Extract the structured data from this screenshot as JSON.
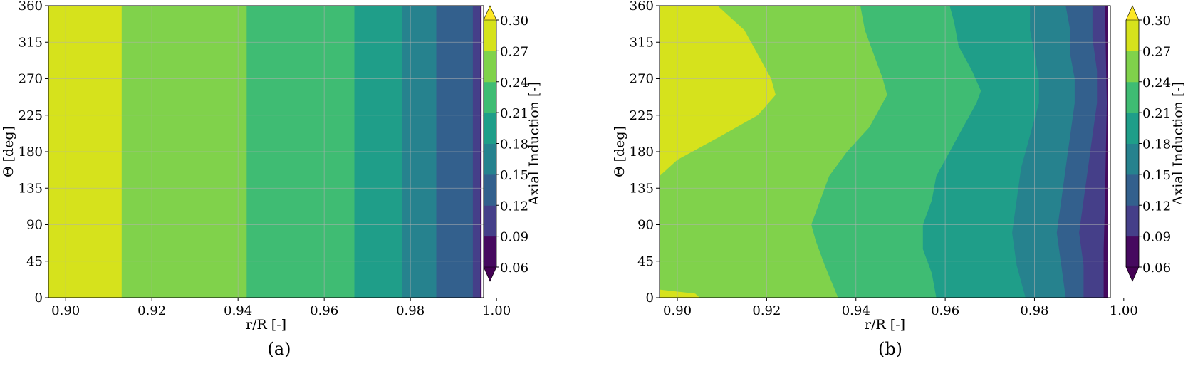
{
  "chart_data": [
    {
      "type": "heatmap",
      "panel_label": "(a)",
      "xlabel": "r/R [-]",
      "ylabel": "Θ [deg]",
      "xlim": [
        0.896,
        0.997
      ],
      "ylim": [
        0,
        360
      ],
      "x_ticks": [
        "0.90",
        "0.92",
        "0.94",
        "0.96",
        "0.98",
        "1.00"
      ],
      "y_ticks": [
        "0",
        "45",
        "90",
        "135",
        "180",
        "225",
        "270",
        "315",
        "360"
      ],
      "grid": true,
      "colorbar": {
        "label": "Axial Induction [-]",
        "levels": [
          0.06,
          0.09,
          0.12,
          0.15,
          0.18,
          0.21,
          0.24,
          0.27,
          0.3
        ],
        "tick_labels": [
          "0.06",
          "0.09",
          "0.12",
          "0.15",
          "0.18",
          "0.21",
          "0.24",
          "0.27",
          "0.30"
        ],
        "extend": "both",
        "colormap": "viridis"
      },
      "contour_boundaries": [
        {
          "level": 0.27,
          "theta": [
            0,
            360
          ],
          "r": [
            0.913,
            0.913
          ]
        },
        {
          "level": 0.24,
          "theta": [
            0,
            360
          ],
          "r": [
            0.942,
            0.942
          ]
        },
        {
          "level": 0.21,
          "theta": [
            0,
            360
          ],
          "r": [
            0.967,
            0.967
          ]
        },
        {
          "level": 0.18,
          "theta": [
            0,
            360
          ],
          "r": [
            0.978,
            0.978
          ]
        },
        {
          "level": 0.15,
          "theta": [
            0,
            360
          ],
          "r": [
            0.986,
            0.986
          ]
        },
        {
          "level": 0.12,
          "theta": [
            0,
            360
          ],
          "r": [
            0.9945,
            0.9945
          ]
        },
        {
          "level": 0.09,
          "theta": [
            0,
            360
          ],
          "r": [
            0.9962,
            0.9962
          ]
        }
      ]
    },
    {
      "type": "heatmap",
      "panel_label": "(b)",
      "xlabel": "r/R [-]",
      "ylabel": "Θ [deg]",
      "xlim": [
        0.896,
        0.997
      ],
      "ylim": [
        0,
        360
      ],
      "x_ticks": [
        "0.90",
        "0.92",
        "0.94",
        "0.96",
        "0.98",
        "1.00"
      ],
      "y_ticks": [
        "0",
        "45",
        "90",
        "135",
        "180",
        "225",
        "270",
        "315",
        "360"
      ],
      "grid": true,
      "colorbar": {
        "label": "Axial Induction [-]",
        "levels": [
          0.06,
          0.09,
          0.12,
          0.15,
          0.18,
          0.21,
          0.24,
          0.27,
          0.3
        ],
        "tick_labels": [
          "0.06",
          "0.09",
          "0.12",
          "0.15",
          "0.18",
          "0.21",
          "0.24",
          "0.27",
          "0.30"
        ],
        "extend": "both",
        "colormap": "viridis"
      },
      "contour_boundaries": [
        {
          "level": 0.27,
          "theta": [
            0,
            5,
            10,
            150,
            170,
            200,
            225,
            250,
            270,
            300,
            330,
            360
          ],
          "r": [
            0.905,
            0.904,
            0.896,
            0.896,
            0.9,
            0.91,
            0.918,
            0.922,
            0.921,
            0.918,
            0.915,
            0.909
          ]
        },
        {
          "level": 0.24,
          "theta": [
            0,
            40,
            70,
            90,
            120,
            150,
            180,
            210,
            250,
            270,
            300,
            330,
            360
          ],
          "r": [
            0.936,
            0.933,
            0.931,
            0.93,
            0.932,
            0.934,
            0.938,
            0.943,
            0.947,
            0.946,
            0.944,
            0.942,
            0.941
          ]
        },
        {
          "level": 0.21,
          "theta": [
            0,
            30,
            60,
            90,
            120,
            150,
            180,
            210,
            240,
            255,
            280,
            310,
            340,
            360
          ],
          "r": [
            0.958,
            0.957,
            0.955,
            0.955,
            0.957,
            0.958,
            0.961,
            0.964,
            0.967,
            0.968,
            0.966,
            0.963,
            0.962,
            0.961
          ]
        },
        {
          "level": 0.18,
          "theta": [
            0,
            40,
            80,
            120,
            160,
            200,
            240,
            270,
            300,
            330,
            360
          ],
          "r": [
            0.978,
            0.976,
            0.975,
            0.976,
            0.977,
            0.979,
            0.981,
            0.981,
            0.98,
            0.979,
            0.979
          ]
        },
        {
          "level": 0.15,
          "theta": [
            0,
            40,
            80,
            120,
            160,
            200,
            240,
            270,
            300,
            330,
            360
          ],
          "r": [
            0.987,
            0.986,
            0.985,
            0.986,
            0.987,
            0.988,
            0.989,
            0.989,
            0.988,
            0.988,
            0.987
          ]
        },
        {
          "level": 0.12,
          "theta": [
            0,
            40,
            80,
            120,
            160,
            200,
            240,
            280,
            320,
            360
          ],
          "r": [
            0.991,
            0.991,
            0.99,
            0.991,
            0.992,
            0.993,
            0.994,
            0.994,
            0.993,
            0.993
          ]
        },
        {
          "level": 0.09,
          "theta": [
            0,
            60,
            120,
            180,
            240,
            300,
            360
          ],
          "r": [
            0.9955,
            0.9955,
            0.9958,
            0.996,
            0.9962,
            0.996,
            0.9958
          ]
        }
      ]
    }
  ]
}
